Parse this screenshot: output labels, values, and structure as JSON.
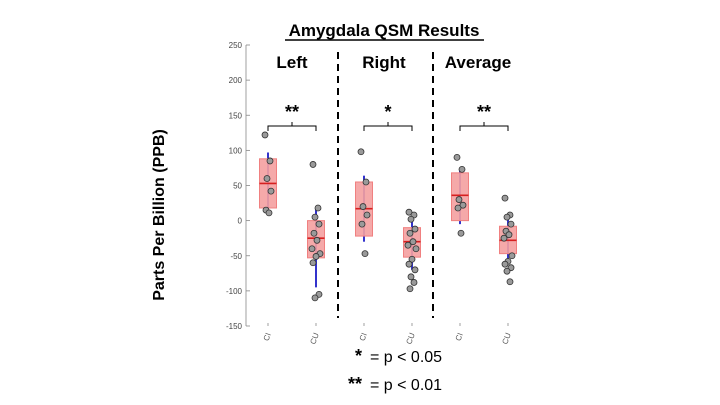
{
  "chart_data": {
    "type": "box",
    "title": "Amygdala QSM Results",
    "ylabel": "Parts Per Billion (PPB)",
    "xlabel": "",
    "ylim": [
      -150,
      250
    ],
    "yticks": [
      -150,
      -100,
      -50,
      0,
      50,
      100,
      150,
      200,
      250
    ],
    "groups": [
      {
        "name": "Left",
        "significance": "**",
        "boxes": [
          {
            "category": "CI",
            "q1": 18,
            "median": 53,
            "q3": 88,
            "whisker_low": 10,
            "whisker_high": 97,
            "points": [
              122,
              85,
              60,
              42,
              15,
              11
            ]
          },
          {
            "category": "CU",
            "q1": -53,
            "median": -25,
            "q3": 0,
            "whisker_low": -95,
            "whisker_high": 20,
            "points": [
              80,
              18,
              5,
              -5,
              -18,
              -28,
              -40,
              -47,
              -51,
              -60,
              -105,
              -110
            ]
          }
        ]
      },
      {
        "name": "Right",
        "significance": "*",
        "boxes": [
          {
            "category": "CI",
            "q1": -22,
            "median": 17,
            "q3": 55,
            "whisker_low": -30,
            "whisker_high": 64,
            "points": [
              98,
              55,
              20,
              8,
              -5,
              -47
            ]
          },
          {
            "category": "CU",
            "q1": -52,
            "median": -30,
            "q3": -10,
            "whisker_low": -70,
            "whisker_high": 10,
            "points": [
              12,
              8,
              2,
              -12,
              -18,
              -30,
              -35,
              -40,
              -55,
              -62,
              -70,
              -80,
              -88,
              -97
            ]
          }
        ]
      },
      {
        "name": "Average",
        "significance": "**",
        "boxes": [
          {
            "category": "CI",
            "q1": 0,
            "median": 36,
            "q3": 68,
            "whisker_low": -5,
            "whisker_high": 75,
            "points": [
              90,
              73,
              30,
              22,
              18,
              -18
            ]
          },
          {
            "category": "CU",
            "q1": -47,
            "median": -28,
            "q3": -8,
            "whisker_low": -62,
            "whisker_high": 5,
            "points": [
              32,
              8,
              5,
              -5,
              -15,
              -20,
              -25,
              -50,
              -58,
              -62,
              -67,
              -72,
              -87
            ]
          }
        ]
      }
    ],
    "legend": [
      {
        "symbol": "*",
        "text": "= p < 0.05"
      },
      {
        "symbol": "**",
        "text": "= p < 0.01"
      }
    ],
    "colors": {
      "box_fill": "#f4a0a0",
      "box_edge": "#f08080",
      "median": "#d62020",
      "whisker": "#3333cc",
      "point_fill": "#9a9a9a",
      "point_edge": "#333333"
    }
  }
}
